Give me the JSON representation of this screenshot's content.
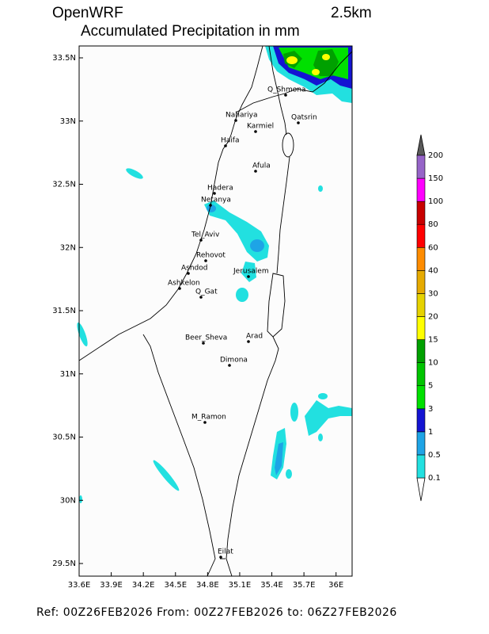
{
  "header": {
    "model": "OpenWRF",
    "resolution": "2.5km",
    "title": "Accumulated Precipitation in mm"
  },
  "map": {
    "xlim": [
      33.6,
      36.15
    ],
    "ylim": [
      29.4,
      33.594
    ],
    "xticks": [
      {
        "value": 33.6,
        "label": "33.6E"
      },
      {
        "value": 33.9,
        "label": "33.9E"
      },
      {
        "value": 34.2,
        "label": "34.2E"
      },
      {
        "value": 34.5,
        "label": "34.5E"
      },
      {
        "value": 34.8,
        "label": "34.8E"
      },
      {
        "value": 35.1,
        "label": "35.1E"
      },
      {
        "value": 35.4,
        "label": "35.4E"
      },
      {
        "value": 35.7,
        "label": "35.7E"
      },
      {
        "value": 36,
        "label": "36E"
      }
    ],
    "yticks": [
      {
        "value": 33.5,
        "label": "33.5N"
      },
      {
        "value": 33,
        "label": "33N"
      },
      {
        "value": 32.5,
        "label": "32.5N"
      },
      {
        "value": 32,
        "label": "32N"
      },
      {
        "value": 31.5,
        "label": "31.5N"
      },
      {
        "value": 31,
        "label": "31N"
      },
      {
        "value": 30.5,
        "label": "30.5N"
      },
      {
        "value": 30,
        "label": "30N"
      },
      {
        "value": 29.5,
        "label": "29.5N"
      }
    ],
    "cities": [
      "Q_Shmona",
      "Nahariya",
      "Karmiel",
      "Qatsrin",
      "Haifa",
      "Afula",
      "Hadera",
      "Netanya",
      "Tel_Aviv",
      "Rehovot",
      "Ashdod",
      "Jerusalem",
      "Ashkelon",
      "Q_Gat",
      "Beer_Sheva",
      "Arad",
      "Dimona",
      "M_Ramon",
      "Eilat"
    ]
  },
  "colorbar": {
    "levels": [
      0.1,
      0.5,
      1,
      3,
      5,
      10,
      15,
      20,
      30,
      40,
      60,
      80,
      100,
      150,
      200
    ],
    "colors": [
      "#22e0e0",
      "#1ea4e6",
      "#1414d2",
      "#00e000",
      "#00c400",
      "#00a000",
      "#ffff00",
      "#e6d200",
      "#e6aa00",
      "#ff8c00",
      "#ff0000",
      "#c80000",
      "#ff00ff",
      "#9664c8"
    ]
  },
  "footer": "Ref: 00Z26FEB2026  From: 00Z27FEB2026  to: 06Z27FEB2026"
}
